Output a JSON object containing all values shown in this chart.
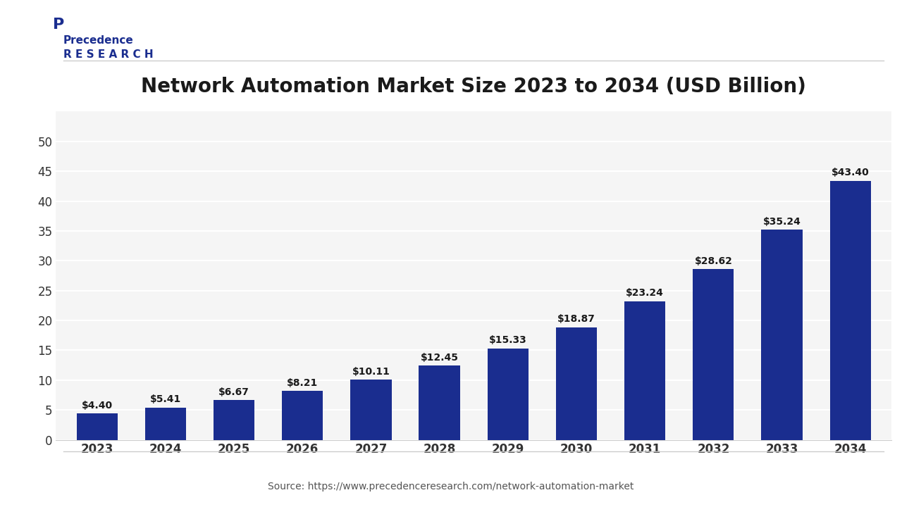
{
  "years": [
    2023,
    2024,
    2025,
    2026,
    2027,
    2028,
    2029,
    2030,
    2031,
    2032,
    2033,
    2034
  ],
  "values": [
    4.4,
    5.41,
    6.67,
    8.21,
    10.11,
    12.45,
    15.33,
    18.87,
    23.24,
    28.62,
    35.24,
    43.4
  ],
  "bar_color": "#1a2d8f",
  "title": "Network Automation Market Size 2023 to 2034 (USD Billion)",
  "title_fontsize": 20,
  "title_color": "#1a1a1a",
  "xlabel": "",
  "ylabel": "",
  "ylim": [
    0,
    55
  ],
  "yticks": [
    0,
    5,
    10,
    15,
    20,
    25,
    30,
    35,
    40,
    45,
    50
  ],
  "background_color": "#ffffff",
  "plot_bg_color": "#f5f5f5",
  "source_text": "Source: https://www.precedenceresearch.com/network-automation-market",
  "label_fontsize": 10,
  "tick_fontsize": 12,
  "bar_width": 0.6,
  "grid_color": "#ffffff",
  "axis_color": "#cccccc"
}
